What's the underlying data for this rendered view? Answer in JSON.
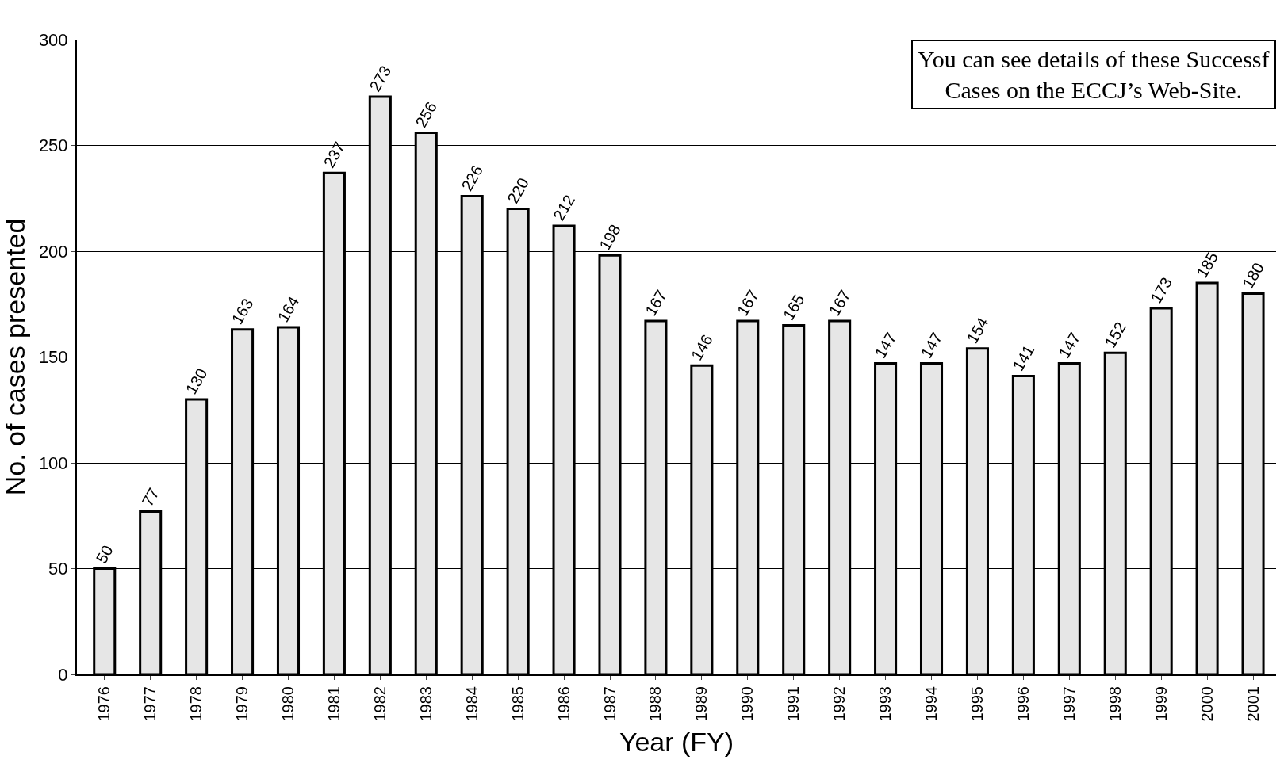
{
  "chart_data": {
    "type": "bar",
    "categories": [
      "1976",
      "1977",
      "1978",
      "1979",
      "1980",
      "1981",
      "1982",
      "1983",
      "1984",
      "1985",
      "1986",
      "1987",
      "1988",
      "1989",
      "1990",
      "1991",
      "1992",
      "1993",
      "1994",
      "1995",
      "1996",
      "1997",
      "1998",
      "1999",
      "2000",
      "2001"
    ],
    "values": [
      50,
      77,
      130,
      163,
      164,
      237,
      273,
      256,
      226,
      220,
      212,
      198,
      167,
      146,
      167,
      165,
      167,
      147,
      147,
      154,
      141,
      147,
      152,
      173,
      185,
      180
    ],
    "color": "#e6e6e6",
    "xlabel": "Year (FY)",
    "ylabel": "No. of cases presented",
    "ylim": [
      0,
      300
    ],
    "yticks": [
      0,
      50,
      100,
      150,
      200,
      250,
      300
    ],
    "grid": "y",
    "data_labels": true,
    "annotations": [
      "You can see details of these Successf\nCases on the ECCJ’s Web-Site."
    ]
  }
}
